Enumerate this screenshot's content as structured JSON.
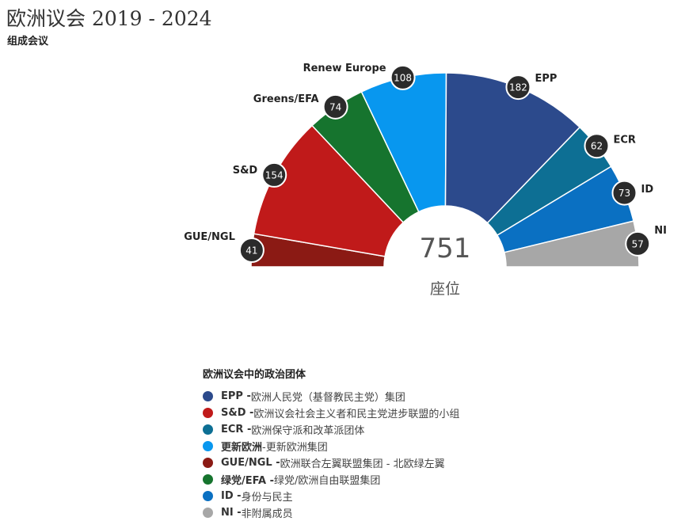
{
  "header": {
    "title": "欧洲议会 2019 - 2024",
    "subtitle": "组成会议"
  },
  "chart_data": {
    "type": "pie",
    "style": "semicircle-donut",
    "total_label": "751",
    "center_sub_label": "座位",
    "slices": [
      {
        "name": "GUE/NGL",
        "value": 41,
        "color": "#8b1a14"
      },
      {
        "name": "S&D",
        "value": 154,
        "color": "#c01a1a"
      },
      {
        "name": "Greens/EFA",
        "value": 74,
        "color": "#16742e"
      },
      {
        "name": "Renew Europe",
        "value": 108,
        "color": "#0897ef"
      },
      {
        "name": "EPP",
        "value": 182,
        "color": "#2c4a8c"
      },
      {
        "name": "ECR",
        "value": 62,
        "color": "#0d6f94"
      },
      {
        "name": "ID",
        "value": 73,
        "color": "#0a70c2"
      },
      {
        "name": "NI",
        "value": 57,
        "color": "#a7a7a7"
      }
    ]
  },
  "legend": {
    "title": "欧洲议会中的政治团体",
    "items": [
      {
        "short": "EPP -",
        "desc": "欧洲人民党（基督教民主党）集团",
        "color": "#2c4a8c"
      },
      {
        "short": "S&D -",
        "desc": "欧洲议会社会主义者和民主党进步联盟的小组",
        "color": "#c01a1a"
      },
      {
        "short": "ECR -",
        "desc": "欧洲保守派和改革派团体",
        "color": "#0d6f94"
      },
      {
        "short": "更新欧洲",
        "desc": "-更新欧洲集团",
        "color": "#0897ef"
      },
      {
        "short": "GUE/NGL -",
        "desc": "欧洲联合左翼联盟集团 - 北欧绿左翼",
        "color": "#8b1a14"
      },
      {
        "short": "绿党/EFA -",
        "desc": "绿党/欧洲自由联盟集团",
        "color": "#16742e"
      },
      {
        "short": "ID -",
        "desc": "身份与民主",
        "color": "#0a70c2"
      },
      {
        "short": "NI -",
        "desc": "非附属成员",
        "color": "#a7a7a7"
      }
    ]
  }
}
